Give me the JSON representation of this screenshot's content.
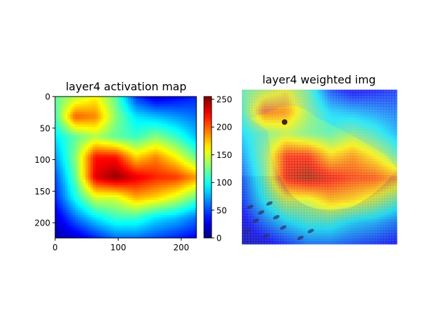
{
  "chart_data": [
    {
      "type": "heatmap",
      "title": "layer4 activation map",
      "colormap": "jet",
      "xlim": [
        0,
        224
      ],
      "ylim": [
        224,
        0
      ],
      "xticks": [
        0,
        100,
        200
      ],
      "yticks": [
        0,
        50,
        100,
        150,
        200
      ],
      "colorbar": {
        "range": [
          0,
          255
        ],
        "ticks": [
          0,
          50,
          100,
          150,
          200,
          250
        ]
      },
      "grid_columns": [
        0,
        32,
        64,
        96,
        128,
        160,
        192,
        224
      ],
      "grid_rows": [
        0,
        32,
        64,
        96,
        128,
        160,
        192,
        224
      ],
      "grid_values": [
        [
          120,
          140,
          160,
          120,
          45,
          20,
          30,
          40
        ],
        [
          110,
          200,
          190,
          130,
          90,
          80,
          70,
          60
        ],
        [
          90,
          120,
          140,
          120,
          110,
          130,
          110,
          80
        ],
        [
          70,
          130,
          220,
          220,
          170,
          190,
          160,
          120
        ],
        [
          50,
          120,
          230,
          250,
          230,
          215,
          210,
          185
        ],
        [
          40,
          100,
          150,
          150,
          180,
          170,
          150,
          120
        ],
        [
          20,
          60,
          90,
          110,
          110,
          90,
          80,
          60
        ],
        [
          10,
          20,
          40,
          60,
          60,
          50,
          40,
          30
        ]
      ]
    },
    {
      "type": "heatmap",
      "title": "layer4 weighted img",
      "overlay_of": "layer4 activation map",
      "axes": "off"
    }
  ]
}
